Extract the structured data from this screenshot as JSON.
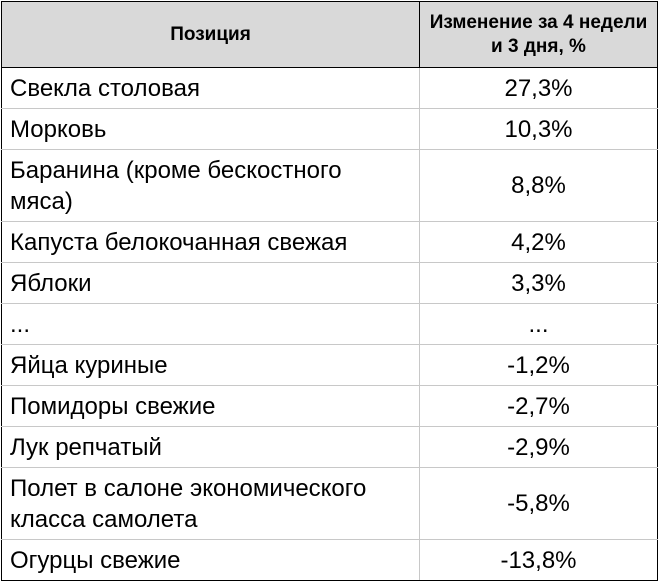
{
  "chart_data": {
    "type": "table",
    "columns": [
      "Позиция",
      "Изменение за 4 недели и 3 дня, %"
    ],
    "rows": [
      {
        "name": "Свекла столовая",
        "value": "27,3%"
      },
      {
        "name": "Морковь",
        "value": "10,3%"
      },
      {
        "name": "Баранина (кроме бескостного мяса)",
        "value": "8,8%"
      },
      {
        "name": "Капуста белокочанная свежая",
        "value": "4,2%"
      },
      {
        "name": "Яблоки",
        "value": "3,3%"
      },
      {
        "name": "...",
        "value": "..."
      },
      {
        "name": "Яйца куриные",
        "value": "-1,2%"
      },
      {
        "name": "Помидоры свежие",
        "value": "-2,7%"
      },
      {
        "name": "Лук репчатый",
        "value": "-2,9%"
      },
      {
        "name": "Полет в салоне экономического класса самолета",
        "value": "-5,8%"
      },
      {
        "name": "Огурцы свежие",
        "value": "-13,8%"
      }
    ],
    "header_color": "#d9d9d9",
    "border_color": "#000000",
    "grid": true
  }
}
